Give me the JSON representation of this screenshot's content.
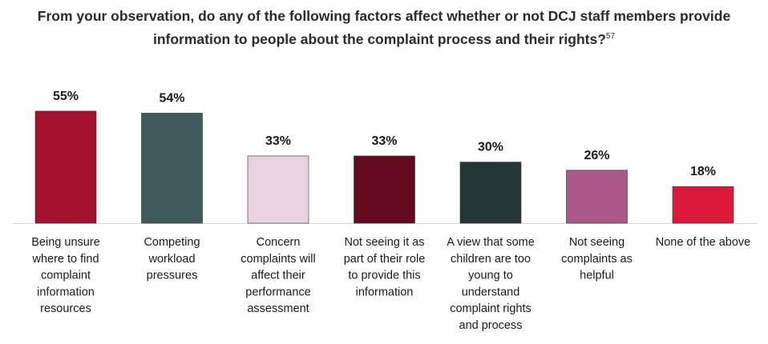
{
  "title": {
    "line1": "From your observation, do any of the following factors affect whether or not DCJ staff members provide",
    "line2": "information to people about the complaint process and their rights?",
    "footnote": "57"
  },
  "chart_data": {
    "type": "bar",
    "title": "From your observation, do any of the following factors affect whether or not DCJ staff members provide information to people about the complaint process and their rights?",
    "categories": [
      "Being unsure where to find complaint information resources",
      "Competing workload pressures",
      "Concern complaints will affect their performance assessment",
      "Not seeing it as part of their role to provide this information",
      "A view that some children are too young to understand complaint rights and process",
      "Not seeing complaints as helpful",
      "None of the above"
    ],
    "category_lines": [
      [
        "Being unsure",
        "where to find",
        "complaint",
        "information",
        "resources"
      ],
      [
        "Competing",
        "workload",
        "pressures"
      ],
      [
        "Concern",
        "complaints will",
        "affect their",
        "performance",
        "assessment"
      ],
      [
        "Not seeing it as",
        "part of their role",
        "to provide this",
        "information"
      ],
      [
        "A view that some",
        "children are too",
        "young to",
        "understand",
        "complaint rights",
        "and process"
      ],
      [
        "Not seeing",
        "complaints as",
        "helpful"
      ],
      [
        "None of the above"
      ]
    ],
    "values": [
      55,
      54,
      33,
      33,
      30,
      26,
      18
    ],
    "value_labels": [
      "55%",
      "54%",
      "33%",
      "33%",
      "30%",
      "26%",
      "18%"
    ],
    "colors": [
      "#a3122e",
      "#3e5b5a",
      "#e8d3de",
      "#640a1f",
      "#263735",
      "#a95987",
      "#db1a3b"
    ],
    "baseline_color": "#d9d9d9",
    "xlabel": "",
    "ylabel": "",
    "grid": false,
    "legend": "none"
  }
}
